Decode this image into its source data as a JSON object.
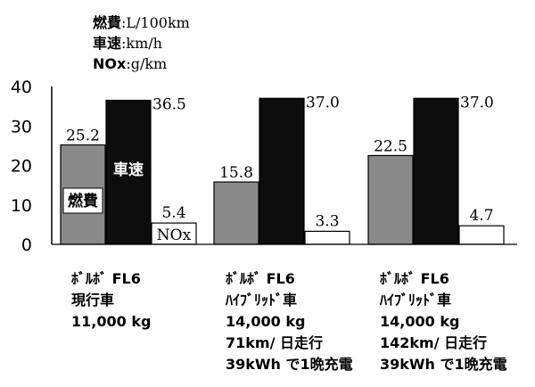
{
  "chart_data": {
    "type": "bar",
    "legend": {
      "entries": [
        {
          "label": "燃費",
          "unit": "L/100km"
        },
        {
          "label": "車速",
          "unit": "km/h"
        },
        {
          "label": "NOx",
          "unit": "g/km"
        }
      ]
    },
    "yticks": [
      "40",
      "30",
      "20",
      "10",
      "0"
    ],
    "ylim": [
      0,
      40
    ],
    "grid": false,
    "series": [
      {
        "name": "燃費",
        "color": "#8a8a8a",
        "values": [
          25.2,
          15.8,
          22.5
        ]
      },
      {
        "name": "車速",
        "color": "#0d0d0d",
        "values": [
          36.5,
          37.0,
          37.0
        ]
      },
      {
        "name": "NOx",
        "color": "#ffffff",
        "values": [
          5.4,
          3.3,
          4.7
        ]
      }
    ],
    "value_labels": [
      [
        "25.2",
        "36.5",
        "5.4"
      ],
      [
        "15.8",
        "37.0",
        "3.3"
      ],
      [
        "22.5",
        "37.0",
        "4.7"
      ]
    ],
    "in_bar_labels": {
      "fuel": "燃費",
      "speed": "車速",
      "nox": "NOx"
    },
    "categories": [
      {
        "lines": [
          "ﾎﾞﾙﾎﾞ FL6",
          "現行車",
          "11,000 kg"
        ]
      },
      {
        "lines": [
          "ﾎﾞﾙﾎﾞ FL6",
          "ﾊｲﾌﾞﾘｯﾄﾞ車",
          "14,000 kg",
          "71km/ 日走行",
          "39kWh で1晩充電"
        ]
      },
      {
        "lines": [
          "ﾎﾞﾙﾎﾞ FL6",
          "ﾊｲﾌﾞﾘｯﾄﾞ車",
          "14,000 kg",
          "142km/ 日走行",
          "39kWh で1晩充電"
        ]
      }
    ]
  }
}
